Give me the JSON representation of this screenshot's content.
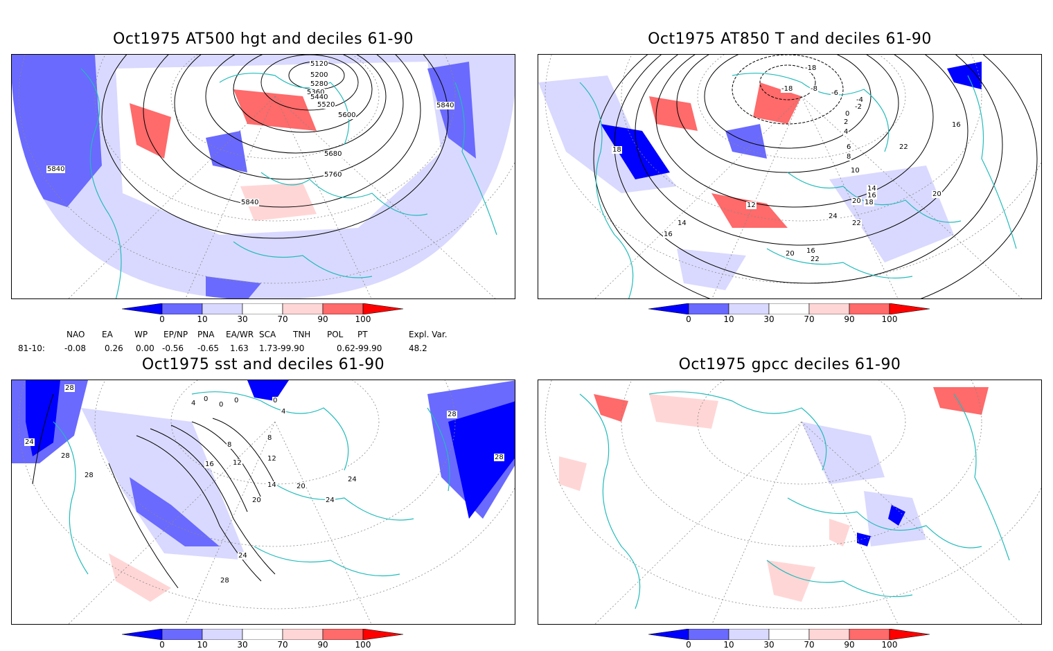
{
  "panels": [
    {
      "title": "Oct1975 AT500 hgt and deciles 61-90",
      "contour_labels": [
        "5120",
        "5200",
        "5280",
        "5360",
        "5440",
        "5520",
        "5600",
        "5680",
        "5760",
        "5840",
        "5840",
        "5840"
      ]
    },
    {
      "title": "Oct1975 AT850 T and deciles 61-90",
      "contour_labels": [
        "-18",
        "-18",
        "-8",
        "-6",
        "-4",
        "-2",
        "0",
        "2",
        "4",
        "6",
        "8",
        "10",
        "12",
        "14",
        "14",
        "16",
        "16",
        "16",
        "16",
        "18",
        "18",
        "20",
        "20",
        "20",
        "22",
        "22",
        "22",
        "24"
      ]
    },
    {
      "title": "Oct1975 sst and deciles 61-90",
      "contour_labels": [
        "28",
        "24",
        "28",
        "28",
        "0",
        "0",
        "0",
        "0",
        "4",
        "4",
        "8",
        "8",
        "12",
        "12",
        "14",
        "16",
        "20",
        "20",
        "24",
        "24",
        "24",
        "28",
        "28",
        "28"
      ]
    },
    {
      "title": "Oct1975 gpcc deciles 61-90",
      "contour_labels": []
    }
  ],
  "colorbar": {
    "labels": [
      "0",
      "10",
      "30",
      "70",
      "90",
      "100"
    ],
    "colors": [
      "#0000ff",
      "#6a6aff",
      "#d9d9ff",
      "#ffffff",
      "#ffd6d6",
      "#ff6a6a",
      "#ff0000"
    ]
  },
  "indices": {
    "row_label": "81-10:",
    "headers": [
      "NAO",
      "EA",
      "WP",
      "EP/NP",
      "PNA",
      "EA/WR",
      "SCA",
      "TNH",
      "POL",
      "PT",
      "Expl. Var."
    ],
    "values": [
      "-0.08",
      "0.26",
      "0.00",
      "-0.56",
      "-0.65",
      "1.63",
      "1.73-99.90",
      "0.62-99.90",
      "48.2"
    ]
  },
  "map_colors": {
    "coast": "#22bbbb",
    "grid": "#888888",
    "contour": "#000000"
  }
}
